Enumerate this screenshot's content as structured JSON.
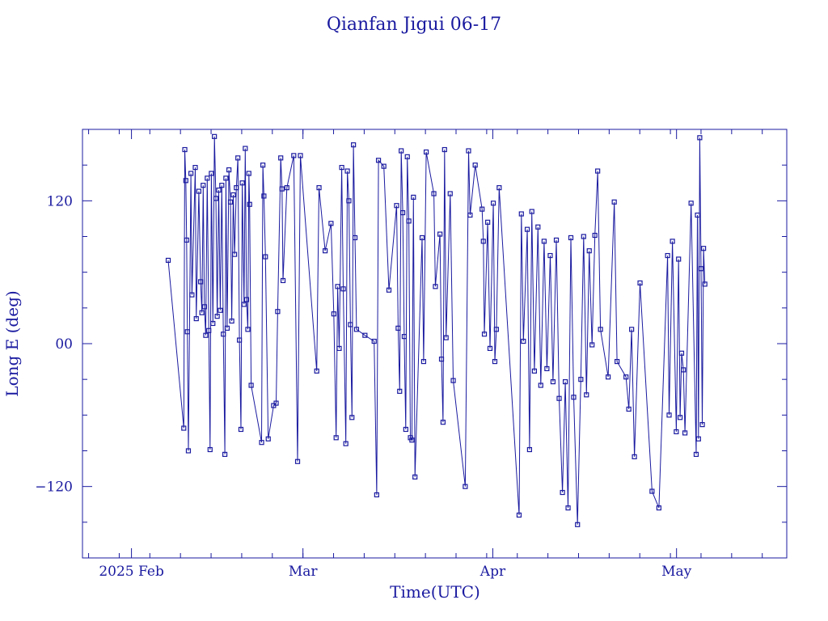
{
  "chart_data": {
    "type": "line",
    "title": "Qianfan Jigui 06-17",
    "xlabel": "Time(UTC)",
    "ylabel": "Long E (deg)",
    "x_ticks": [
      {
        "date": "2025-02-01",
        "label": "2025 Feb"
      },
      {
        "date": "2025-03-01",
        "label": "Mar"
      },
      {
        "date": "2025-04-01",
        "label": "Apr"
      },
      {
        "date": "2025-05-01",
        "label": "May"
      }
    ],
    "y_ticks": [
      -120,
      0,
      120
    ],
    "y_tick_labels": [
      "−120",
      "00",
      "120"
    ],
    "xlim": [
      "2025-01-24",
      "2025-05-19"
    ],
    "ylim": [
      -180,
      180
    ],
    "grid": false,
    "legend": "none",
    "colors": {
      "line": "#1a1aa0",
      "marker": "#1a1aa0",
      "frame": "#1a1aa0",
      "text": "#1a1aa0"
    },
    "marker": "open-square",
    "series": [
      {
        "values": [
          [
            "2025-02-07T00:00",
            70
          ],
          [
            "2025-02-09T13:00",
            -71
          ],
          [
            "2025-02-09T17:00",
            163
          ],
          [
            "2025-02-09T21:00",
            137
          ],
          [
            "2025-02-10T00:00",
            87
          ],
          [
            "2025-02-10T03:00",
            10
          ],
          [
            "2025-02-10T07:00",
            -90
          ],
          [
            "2025-02-10T17:00",
            143
          ],
          [
            "2025-02-10T21:00",
            41
          ],
          [
            "2025-02-11T10:00",
            148
          ],
          [
            "2025-02-11T14:00",
            21
          ],
          [
            "2025-02-12T00:00",
            128
          ],
          [
            "2025-02-12T07:00",
            52
          ],
          [
            "2025-02-12T12:00",
            26
          ],
          [
            "2025-02-12T17:00",
            133
          ],
          [
            "2025-02-12T22:00",
            31
          ],
          [
            "2025-02-13T03:00",
            7
          ],
          [
            "2025-02-13T09:00",
            139
          ],
          [
            "2025-02-13T15:00",
            11
          ],
          [
            "2025-02-13T20:00",
            -89
          ],
          [
            "2025-02-14T01:00",
            143
          ],
          [
            "2025-02-14T07:00",
            17
          ],
          [
            "2025-02-14T13:00",
            174
          ],
          [
            "2025-02-14T19:00",
            122
          ],
          [
            "2025-02-15T00:00",
            23
          ],
          [
            "2025-02-15T06:00",
            129
          ],
          [
            "2025-02-15T12:00",
            28
          ],
          [
            "2025-02-15T18:00",
            133
          ],
          [
            "2025-02-16T00:00",
            8
          ],
          [
            "2025-02-16T06:00",
            -93
          ],
          [
            "2025-02-16T10:00",
            139
          ],
          [
            "2025-02-16T15:00",
            13
          ],
          [
            "2025-02-16T22:00",
            146
          ],
          [
            "2025-02-17T04:00",
            119
          ],
          [
            "2025-02-17T09:00",
            19
          ],
          [
            "2025-02-17T15:00",
            125
          ],
          [
            "2025-02-17T20:00",
            75
          ],
          [
            "2025-02-18T03:00",
            131
          ],
          [
            "2025-02-18T09:00",
            156
          ],
          [
            "2025-02-18T15:00",
            3
          ],
          [
            "2025-02-18T21:00",
            -72
          ],
          [
            "2025-02-19T02:00",
            135
          ],
          [
            "2025-02-19T09:00",
            33
          ],
          [
            "2025-02-19T14:00",
            164
          ],
          [
            "2025-02-19T19:00",
            37
          ],
          [
            "2025-02-20T00:00",
            12
          ],
          [
            "2025-02-20T04:00",
            143
          ],
          [
            "2025-02-20T07:00",
            117
          ],
          [
            "2025-02-20T13:00",
            -35
          ],
          [
            "2025-02-22T06:00",
            -83
          ],
          [
            "2025-02-22T11:00",
            150
          ],
          [
            "2025-02-22T15:00",
            124
          ],
          [
            "2025-02-22T21:00",
            73
          ],
          [
            "2025-02-23T08:00",
            -80
          ],
          [
            "2025-02-24T05:00",
            -52
          ],
          [
            "2025-02-24T15:00",
            -50
          ],
          [
            "2025-02-24T21:00",
            27
          ],
          [
            "2025-02-25T09:00",
            156
          ],
          [
            "2025-02-25T14:00",
            130
          ],
          [
            "2025-02-25T18:00",
            53
          ],
          [
            "2025-02-26T09:00",
            131
          ],
          [
            "2025-02-27T12:00",
            158
          ],
          [
            "2025-02-28T03:00",
            -99
          ],
          [
            "2025-02-28T14:00",
            158
          ],
          [
            "2025-03-03T06:00",
            -23
          ],
          [
            "2025-03-03T15:00",
            131
          ],
          [
            "2025-03-04T15:00",
            78
          ],
          [
            "2025-03-05T14:00",
            101
          ],
          [
            "2025-03-06T01:00",
            25
          ],
          [
            "2025-03-06T10:00",
            -79
          ],
          [
            "2025-03-06T16:00",
            48
          ],
          [
            "2025-03-06T22:00",
            -4
          ],
          [
            "2025-03-07T08:00",
            148
          ],
          [
            "2025-03-07T14:00",
            46
          ],
          [
            "2025-03-08T00:00",
            -84
          ],
          [
            "2025-03-08T06:00",
            145
          ],
          [
            "2025-03-08T12:00",
            120
          ],
          [
            "2025-03-08T18:00",
            16
          ],
          [
            "2025-03-09T00:00",
            -62
          ],
          [
            "2025-03-09T06:00",
            167
          ],
          [
            "2025-03-09T12:00",
            89
          ],
          [
            "2025-03-09T18:00",
            12
          ],
          [
            "2025-03-11T03:00",
            7
          ],
          [
            "2025-03-12T15:00",
            2
          ],
          [
            "2025-03-13T01:00",
            -127
          ],
          [
            "2025-03-13T08:00",
            154
          ],
          [
            "2025-03-14T05:00",
            149
          ],
          [
            "2025-03-15T01:00",
            45
          ],
          [
            "2025-03-16T07:00",
            116
          ],
          [
            "2025-03-16T13:00",
            13
          ],
          [
            "2025-03-16T19:00",
            -40
          ],
          [
            "2025-03-17T01:00",
            162
          ],
          [
            "2025-03-17T07:00",
            110
          ],
          [
            "2025-03-17T13:00",
            6
          ],
          [
            "2025-03-17T19:00",
            -72
          ],
          [
            "2025-03-18T01:00",
            157
          ],
          [
            "2025-03-18T07:00",
            103
          ],
          [
            "2025-03-18T13:00",
            -79
          ],
          [
            "2025-03-18T19:00",
            -81
          ],
          [
            "2025-03-19T01:00",
            123
          ],
          [
            "2025-03-19T07:00",
            -112
          ],
          [
            "2025-03-20T11:00",
            89
          ],
          [
            "2025-03-20T17:00",
            -15
          ],
          [
            "2025-03-21T03:00",
            161
          ],
          [
            "2025-03-22T09:00",
            126
          ],
          [
            "2025-03-22T15:00",
            48
          ],
          [
            "2025-03-23T09:00",
            92
          ],
          [
            "2025-03-23T15:00",
            -13
          ],
          [
            "2025-03-23T21:00",
            -66
          ],
          [
            "2025-03-24T03:00",
            163
          ],
          [
            "2025-03-24T09:00",
            5
          ],
          [
            "2025-03-25T01:00",
            126
          ],
          [
            "2025-03-25T13:00",
            -31
          ],
          [
            "2025-03-27T12:00",
            -120
          ],
          [
            "2025-03-28T01:00",
            162
          ],
          [
            "2025-03-28T07:00",
            108
          ],
          [
            "2025-03-29T03:00",
            150
          ],
          [
            "2025-03-30T06:00",
            113
          ],
          [
            "2025-03-30T11:00",
            86
          ],
          [
            "2025-03-30T15:00",
            8
          ],
          [
            "2025-03-31T04:00",
            102
          ],
          [
            "2025-03-31T13:00",
            -4
          ],
          [
            "2025-04-01T02:00",
            118
          ],
          [
            "2025-04-01T08:00",
            -15
          ],
          [
            "2025-04-01T14:00",
            12
          ],
          [
            "2025-04-02T01:00",
            131
          ],
          [
            "2025-04-05T07:00",
            -144
          ],
          [
            "2025-04-05T16:00",
            109
          ],
          [
            "2025-04-06T00:00",
            2
          ],
          [
            "2025-04-06T15:00",
            96
          ],
          [
            "2025-04-07T00:00",
            -89
          ],
          [
            "2025-04-07T09:00",
            111
          ],
          [
            "2025-04-07T19:00",
            -23
          ],
          [
            "2025-04-08T09:00",
            98
          ],
          [
            "2025-04-08T20:00",
            -35
          ],
          [
            "2025-04-09T09:00",
            86
          ],
          [
            "2025-04-09T20:00",
            -21
          ],
          [
            "2025-04-10T09:00",
            74
          ],
          [
            "2025-04-10T20:00",
            -32
          ],
          [
            "2025-04-11T09:00",
            87
          ],
          [
            "2025-04-11T20:00",
            -46
          ],
          [
            "2025-04-12T09:00",
            -125
          ],
          [
            "2025-04-12T20:00",
            -32
          ],
          [
            "2025-04-13T07:00",
            -138
          ],
          [
            "2025-04-13T18:00",
            89
          ],
          [
            "2025-04-14T05:00",
            -45
          ],
          [
            "2025-04-14T20:00",
            -152
          ],
          [
            "2025-04-15T09:00",
            -30
          ],
          [
            "2025-04-15T20:00",
            90
          ],
          [
            "2025-04-16T07:00",
            -43
          ],
          [
            "2025-04-16T18:00",
            78
          ],
          [
            "2025-04-17T05:00",
            -1
          ],
          [
            "2025-04-17T16:00",
            91
          ],
          [
            "2025-04-18T03:00",
            145
          ],
          [
            "2025-04-18T14:00",
            12
          ],
          [
            "2025-04-19T20:00",
            -28
          ],
          [
            "2025-04-20T20:00",
            119
          ],
          [
            "2025-04-21T07:00",
            -15
          ],
          [
            "2025-04-22T18:00",
            -28
          ],
          [
            "2025-04-23T05:00",
            -55
          ],
          [
            "2025-04-23T16:00",
            12
          ],
          [
            "2025-04-24T03:00",
            -95
          ],
          [
            "2025-04-25T01:00",
            51
          ],
          [
            "2025-04-27T00:00",
            -124
          ],
          [
            "2025-04-28T03:00",
            -138
          ],
          [
            "2025-04-29T13:00",
            74
          ],
          [
            "2025-04-29T19:00",
            -60
          ],
          [
            "2025-04-30T08:00",
            86
          ],
          [
            "2025-04-30T23:00",
            -74
          ],
          [
            "2025-05-01T08:00",
            71
          ],
          [
            "2025-05-01T14:00",
            -62
          ],
          [
            "2025-05-01T20:00",
            -8
          ],
          [
            "2025-05-02T03:00",
            -22
          ],
          [
            "2025-05-02T09:00",
            -75
          ],
          [
            "2025-05-03T09:00",
            118
          ],
          [
            "2025-05-04T05:00",
            -93
          ],
          [
            "2025-05-04T10:00",
            108
          ],
          [
            "2025-05-04T14:00",
            -80
          ],
          [
            "2025-05-04T19:00",
            173
          ],
          [
            "2025-05-05T00:00",
            63
          ],
          [
            "2025-05-05T05:00",
            -68
          ],
          [
            "2025-05-05T10:00",
            80
          ],
          [
            "2025-05-05T15:00",
            50
          ]
        ]
      }
    ]
  }
}
